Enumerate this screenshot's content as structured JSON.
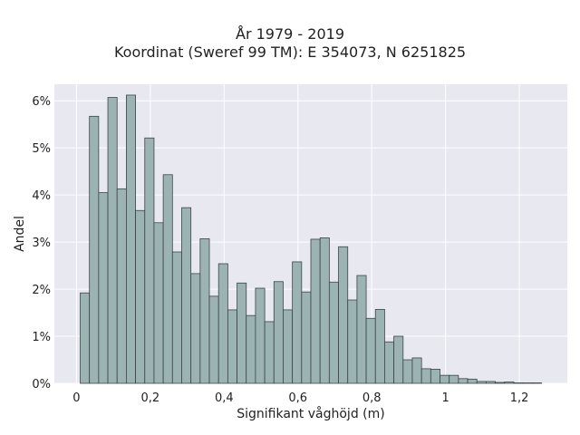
{
  "chart_data": {
    "type": "bar",
    "title": "År 1979 - 2019",
    "subtitle": "Koordinat (Sweref 99 TM): E 354073, N 6251825",
    "xlabel": "Signifikant våghöjd (m)",
    "ylabel": "Andel",
    "xlim": [
      -0.06,
      1.33
    ],
    "ylim": [
      0,
      0.0635
    ],
    "bin_width": 0.025,
    "bin_start": 0.01,
    "values": [
      0.0192,
      0.0567,
      0.0405,
      0.0607,
      0.0413,
      0.0612,
      0.0367,
      0.0521,
      0.0341,
      0.0443,
      0.0279,
      0.0373,
      0.0233,
      0.0307,
      0.0185,
      0.0254,
      0.0156,
      0.0213,
      0.0144,
      0.0202,
      0.0131,
      0.0216,
      0.0156,
      0.0258,
      0.0194,
      0.0306,
      0.0309,
      0.0215,
      0.029,
      0.0177,
      0.0229,
      0.0138,
      0.0157,
      0.0088,
      0.01,
      0.005,
      0.0054,
      0.0031,
      0.003,
      0.0017,
      0.0017,
      0.001,
      0.0009,
      0.0004,
      0.0004,
      0.0002,
      0.0003,
      0.0001,
      0.0001,
      0.0001
    ],
    "x_ticks": [
      {
        "value": 0,
        "label": "0"
      },
      {
        "value": 0.2,
        "label": "0,2"
      },
      {
        "value": 0.4,
        "label": "0,4"
      },
      {
        "value": 0.6,
        "label": "0,6"
      },
      {
        "value": 0.8,
        "label": "0,8"
      },
      {
        "value": 1.0,
        "label": "1"
      },
      {
        "value": 1.2,
        "label": "1,2"
      }
    ],
    "y_ticks": [
      {
        "value": 0,
        "label": "0%"
      },
      {
        "value": 0.01,
        "label": "1%"
      },
      {
        "value": 0.02,
        "label": "2%"
      },
      {
        "value": 0.03,
        "label": "3%"
      },
      {
        "value": 0.04,
        "label": "4%"
      },
      {
        "value": 0.05,
        "label": "5%"
      },
      {
        "value": 0.06,
        "label": "6%"
      }
    ],
    "grid": true,
    "legend": "none",
    "colors": {
      "bar_fill": "#9bb3b3",
      "bar_edge": "#3d4545",
      "plot_bg": "#e8e8f0",
      "grid": "#ffffff"
    }
  }
}
